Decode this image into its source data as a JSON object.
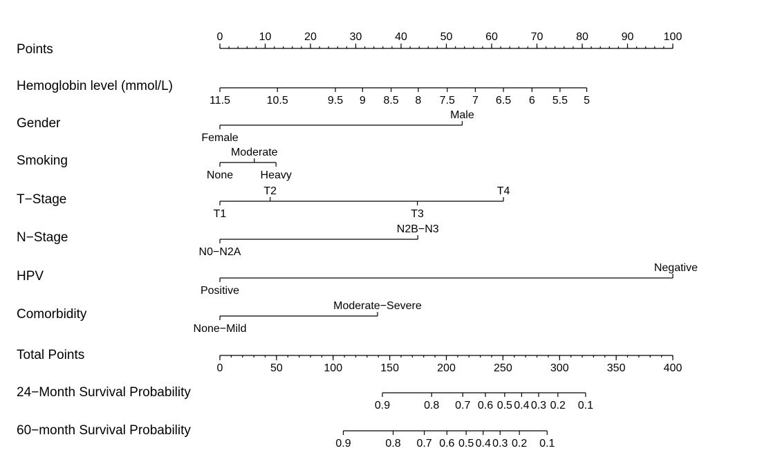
{
  "chart_data": {
    "type": "nomogram",
    "points_scale": {
      "name": "Points",
      "min": 0,
      "max": 100,
      "major_ticks": [
        0,
        10,
        20,
        30,
        40,
        50,
        60,
        70,
        80,
        90,
        100
      ],
      "minor_step": 2
    },
    "variables": [
      {
        "name": "Hemoglobin level (mmol/L)",
        "kind": "continuous",
        "ticks": [
          {
            "label": "11.5",
            "points": 0
          },
          {
            "label": "10.5",
            "points": 12.7
          },
          {
            "label": "9.5",
            "points": 25.5
          },
          {
            "label": "9",
            "points": 31.5
          },
          {
            "label": "8.5",
            "points": 37.8
          },
          {
            "label": "8",
            "points": 43.8
          },
          {
            "label": "7.5",
            "points": 50.2
          },
          {
            "label": "7",
            "points": 56.4
          },
          {
            "label": "6.5",
            "points": 62.6
          },
          {
            "label": "6",
            "points": 68.9
          },
          {
            "label": "5.5",
            "points": 75.1
          },
          {
            "label": "5",
            "points": 81.0
          }
        ]
      },
      {
        "name": "Gender",
        "kind": "categorical",
        "levels": [
          {
            "label": "Female",
            "points": 0,
            "side": "below"
          },
          {
            "label": "Male",
            "points": 53.5,
            "side": "above"
          }
        ]
      },
      {
        "name": "Smoking",
        "kind": "categorical",
        "levels": [
          {
            "label": "None",
            "points": 0,
            "side": "below"
          },
          {
            "label": "Moderate",
            "points": 7.6,
            "side": "above"
          },
          {
            "label": "Heavy",
            "points": 12.4,
            "side": "below"
          }
        ]
      },
      {
        "name": "T−Stage",
        "kind": "categorical",
        "levels": [
          {
            "label": "T1",
            "points": 0,
            "side": "below"
          },
          {
            "label": "T2",
            "points": 11.1,
            "side": "above"
          },
          {
            "label": "T3",
            "points": 43.6,
            "side": "below"
          },
          {
            "label": "T4",
            "points": 62.6,
            "side": "above"
          }
        ]
      },
      {
        "name": "N−Stage",
        "kind": "categorical",
        "levels": [
          {
            "label": "N0−N2A",
            "points": 0,
            "side": "below"
          },
          {
            "label": "N2B−N3",
            "points": 43.7,
            "side": "above"
          }
        ]
      },
      {
        "name": "HPV",
        "kind": "categorical",
        "levels": [
          {
            "label": "Positive",
            "points": 0,
            "side": "below"
          },
          {
            "label": "Negative",
            "points": 100,
            "side": "above"
          }
        ]
      },
      {
        "name": "Comorbidity",
        "kind": "categorical",
        "levels": [
          {
            "label": "None−Mild",
            "points": 0,
            "side": "below"
          },
          {
            "label": "Moderate−Severe",
            "points": 34.8,
            "side": "above"
          }
        ]
      }
    ],
    "total_points_scale": {
      "name": "Total Points",
      "min": 0,
      "max": 400,
      "major_ticks": [
        0,
        50,
        100,
        150,
        200,
        250,
        300,
        350,
        400
      ],
      "minor_step": 10
    },
    "survival_scales": [
      {
        "name": "24−Month Survival Probability",
        "ticks": [
          {
            "label": "0.9",
            "total_points": 143.5
          },
          {
            "label": "0.8",
            "total_points": 187
          },
          {
            "label": "0.7",
            "total_points": 214.5
          },
          {
            "label": "0.6",
            "total_points": 234.5
          },
          {
            "label": "0.5",
            "total_points": 251.5
          },
          {
            "label": "0.4",
            "total_points": 266.5
          },
          {
            "label": "0.3",
            "total_points": 281.5
          },
          {
            "label": "0.2",
            "total_points": 298.5
          },
          {
            "label": "0.1",
            "total_points": 323
          }
        ]
      },
      {
        "name": "60−month Survival Probability",
        "ticks": [
          {
            "label": "0.9",
            "total_points": 109
          },
          {
            "label": "0.8",
            "total_points": 153
          },
          {
            "label": "0.7",
            "total_points": 180.5
          },
          {
            "label": "0.6",
            "total_points": 200.5
          },
          {
            "label": "0.5",
            "total_points": 217.5
          },
          {
            "label": "0.4",
            "total_points": 232.5
          },
          {
            "label": "0.3",
            "total_points": 247.5
          },
          {
            "label": "0.2",
            "total_points": 264.5
          },
          {
            "label": "0.1",
            "total_points": 289
          }
        ]
      }
    ]
  }
}
